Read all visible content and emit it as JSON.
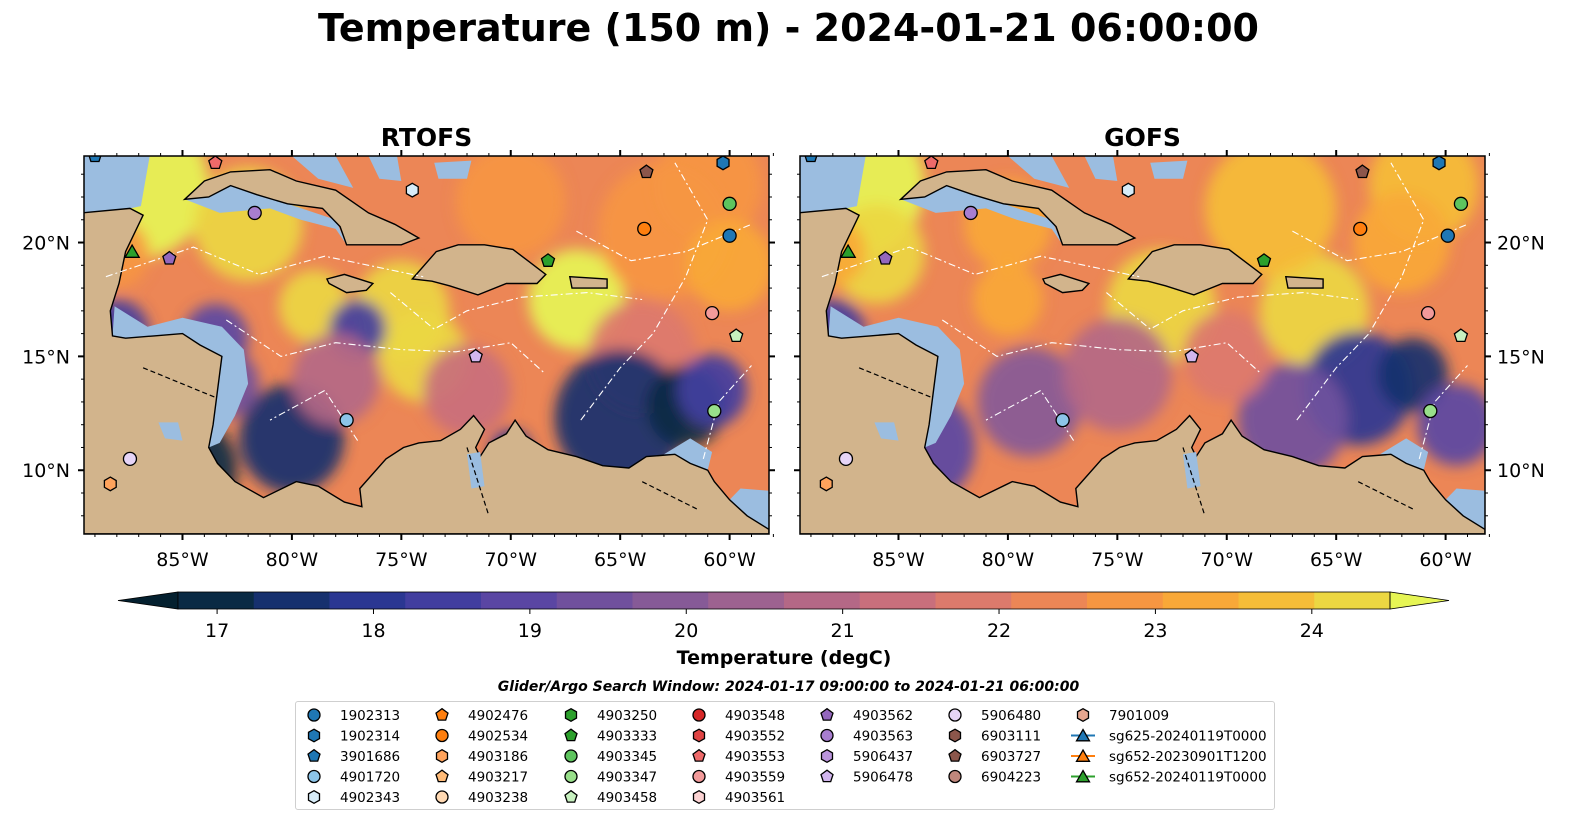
{
  "title": "Temperature (150 m) - 2024-01-21 06:00:00",
  "panels": [
    {
      "name": "RTOFS"
    },
    {
      "name": "GOFS"
    }
  ],
  "axes": {
    "lon_ticks": [
      "85°W",
      "80°W",
      "75°W",
      "70°W",
      "65°W",
      "60°W"
    ],
    "lat_ticks": [
      "20°N",
      "15°N",
      "10°N"
    ],
    "lon_values": [
      -85,
      -80,
      -75,
      -70,
      -65,
      -60
    ],
    "lat_values": [
      20,
      15,
      10
    ],
    "lon_range": [
      -89.5,
      -58.2
    ],
    "lat_range": [
      7.2,
      23.8
    ]
  },
  "colorbar": {
    "label": "Temperature (degC)",
    "ticks": [
      "17",
      "18",
      "19",
      "20",
      "21",
      "22",
      "23",
      "24"
    ],
    "range": [
      16.75,
      24.5
    ],
    "extend": "both",
    "colors": [
      "#04202f",
      "#0a2a44",
      "#16306e",
      "#2b3792",
      "#423e9f",
      "#5a46a3",
      "#70509d",
      "#865a97",
      "#9d6290",
      "#b46886",
      "#c96f7c",
      "#dc7a6c",
      "#ec8656",
      "#f69642",
      "#f8a838",
      "#f5bd38",
      "#ecd742",
      "#e6f554"
    ]
  },
  "chart_data": {
    "type": "heatmap",
    "variable": "Temperature (degC)",
    "depth": "150 m",
    "time": "2024-01-21 06:00:00",
    "panels": [
      "RTOFS",
      "GOFS"
    ],
    "xlabel": "",
    "ylabel": "",
    "legend_position": "bottom-center",
    "land_color": "#d2b48c",
    "shallow_water_color": "#9bbde0",
    "markers": [
      {
        "name": "1902313",
        "marker": "circle",
        "color": "#1f77b4",
        "rtofs": [
          -60.0,
          20.3
        ],
        "gofs": [
          -59.9,
          20.3
        ]
      },
      {
        "name": "1902314",
        "marker": "hexagon",
        "color": "#1f77b4",
        "rtofs": [
          -60.3,
          23.5
        ],
        "gofs": [
          -60.3,
          23.5
        ]
      },
      {
        "name": "3901686",
        "marker": "pentagon",
        "color": "#1f77b4",
        "rtofs": [
          -89.0,
          23.8
        ],
        "gofs": [
          -89.0,
          23.8
        ]
      },
      {
        "name": "4901720",
        "marker": "circle",
        "color": "#8cc4e8",
        "rtofs": [
          -77.5,
          12.2
        ],
        "gofs": [
          -77.5,
          12.2
        ]
      },
      {
        "name": "4902343",
        "marker": "hexagon",
        "color": "#d7ecf8",
        "rtofs": [
          -74.5,
          22.3
        ],
        "gofs": [
          -74.5,
          22.3
        ]
      },
      {
        "name": "4902476",
        "marker": "pentagon",
        "color": "#ff7f0e",
        "rtofs": [],
        "gofs": []
      },
      {
        "name": "4902534",
        "marker": "circle",
        "color": "#ff7f0e",
        "rtofs": [
          -63.9,
          20.6
        ],
        "gofs": [
          -63.9,
          20.6
        ]
      },
      {
        "name": "4903186",
        "marker": "hexagon",
        "color": "#ffa35c",
        "rtofs": [
          -88.3,
          9.4
        ],
        "gofs": [
          -88.3,
          9.4
        ]
      },
      {
        "name": "4903217",
        "marker": "pentagon",
        "color": "#ffbb78",
        "rtofs": [],
        "gofs": []
      },
      {
        "name": "4903238",
        "marker": "circle",
        "color": "#ffd9b3",
        "rtofs": [],
        "gofs": []
      },
      {
        "name": "4903250",
        "marker": "hexagon",
        "color": "#2ca02c",
        "rtofs": [],
        "gofs": []
      },
      {
        "name": "4903333",
        "marker": "pentagon",
        "color": "#2ca02c",
        "rtofs": [
          -68.3,
          19.2
        ],
        "gofs": [
          -68.3,
          19.2
        ]
      },
      {
        "name": "4903345",
        "marker": "circle",
        "color": "#5ec45e",
        "rtofs": [
          -60.0,
          21.7
        ],
        "gofs": [
          -59.3,
          21.7
        ]
      },
      {
        "name": "4903347",
        "marker": "circle",
        "color": "#98df8a",
        "rtofs": [
          -60.7,
          12.6
        ],
        "gofs": [
          -60.7,
          12.6
        ]
      },
      {
        "name": "4903458",
        "marker": "pentagon",
        "color": "#c7f0bf",
        "rtofs": [
          -59.7,
          15.9
        ],
        "gofs": [
          -59.3,
          15.9
        ]
      },
      {
        "name": "4903548",
        "marker": "circle",
        "color": "#d62728",
        "rtofs": [],
        "gofs": []
      },
      {
        "name": "4903552",
        "marker": "hexagon",
        "color": "#e04444",
        "rtofs": [],
        "gofs": []
      },
      {
        "name": "4903553",
        "marker": "pentagon",
        "color": "#ee6a6a",
        "rtofs": [
          -83.5,
          23.5
        ],
        "gofs": [
          -83.5,
          23.5
        ]
      },
      {
        "name": "4903559",
        "marker": "circle",
        "color": "#f29a9a",
        "rtofs": [
          -60.8,
          16.9
        ],
        "gofs": [
          -60.8,
          16.9
        ]
      },
      {
        "name": "4903561",
        "marker": "hexagon",
        "color": "#fbd2d2",
        "rtofs": [],
        "gofs": []
      },
      {
        "name": "4903562",
        "marker": "pentagon",
        "color": "#9467bd",
        "rtofs": [
          -85.6,
          19.3
        ],
        "gofs": [
          -85.6,
          19.3
        ]
      },
      {
        "name": "4903563",
        "marker": "circle",
        "color": "#a87ed0",
        "rtofs": [
          -81.7,
          21.3
        ],
        "gofs": [
          -81.7,
          21.3
        ]
      },
      {
        "name": "5906437",
        "marker": "hexagon",
        "color": "#bb95dd",
        "rtofs": [],
        "gofs": []
      },
      {
        "name": "5906478",
        "marker": "pentagon",
        "color": "#d2b6ee",
        "rtofs": [
          -71.6,
          15.0
        ],
        "gofs": [
          -71.6,
          15.0
        ]
      },
      {
        "name": "5906480",
        "marker": "circle",
        "color": "#e6d4f7",
        "rtofs": [
          -87.4,
          10.5
        ],
        "gofs": [
          -87.4,
          10.5
        ]
      },
      {
        "name": "6903111",
        "marker": "hexagon",
        "color": "#8c564b",
        "rtofs": [],
        "gofs": []
      },
      {
        "name": "6903727",
        "marker": "pentagon",
        "color": "#8c564b",
        "rtofs": [
          -63.8,
          23.1
        ],
        "gofs": [
          -63.8,
          23.1
        ]
      },
      {
        "name": "6904223",
        "marker": "circle",
        "color": "#c0877c",
        "rtofs": [],
        "gofs": []
      },
      {
        "name": "7901009",
        "marker": "hexagon",
        "color": "#e6a68f",
        "rtofs": [],
        "gofs": []
      },
      {
        "name": "sg625-20240119T0000",
        "marker": "triangle",
        "color": "#1f77b4",
        "rtofs": [],
        "gofs": []
      },
      {
        "name": "sg652-20230901T1200",
        "marker": "triangle",
        "color": "#ff7f0e",
        "rtofs": [],
        "gofs": []
      },
      {
        "name": "sg652-20240119T0000",
        "marker": "triangle",
        "color": "#2ca02c",
        "rtofs": [
          -87.3,
          19.6
        ],
        "gofs": [
          -87.3,
          19.6
        ]
      }
    ]
  },
  "legend": {
    "window_label": "Glider/Argo Search Window: 2024-01-17 09:00:00 to 2024-01-21 06:00:00",
    "columns": [
      [
        {
          "label": "1902313",
          "marker": "circle",
          "color": "#1f77b4"
        },
        {
          "label": "1902314",
          "marker": "hexagon",
          "color": "#1f77b4"
        },
        {
          "label": "3901686",
          "marker": "pentagon",
          "color": "#1f77b4"
        },
        {
          "label": "4901720",
          "marker": "circle",
          "color": "#8cc4e8"
        },
        {
          "label": "4902343",
          "marker": "hexagon",
          "color": "#d7ecf8"
        }
      ],
      [
        {
          "label": "4902476",
          "marker": "pentagon",
          "color": "#ff7f0e"
        },
        {
          "label": "4902534",
          "marker": "circle",
          "color": "#ff7f0e"
        },
        {
          "label": "4903186",
          "marker": "hexagon",
          "color": "#ffa35c"
        },
        {
          "label": "4903217",
          "marker": "pentagon",
          "color": "#ffbb78"
        },
        {
          "label": "4903238",
          "marker": "circle",
          "color": "#ffd9b3"
        }
      ],
      [
        {
          "label": "4903250",
          "marker": "hexagon",
          "color": "#2ca02c"
        },
        {
          "label": "4903333",
          "marker": "pentagon",
          "color": "#2ca02c"
        },
        {
          "label": "4903345",
          "marker": "circle",
          "color": "#5ec45e"
        },
        {
          "label": "4903347",
          "marker": "circle",
          "color": "#98df8a"
        },
        {
          "label": "4903458",
          "marker": "pentagon",
          "color": "#c7f0bf"
        }
      ],
      [
        {
          "label": "4903548",
          "marker": "circle",
          "color": "#d62728"
        },
        {
          "label": "4903552",
          "marker": "hexagon",
          "color": "#e04444"
        },
        {
          "label": "4903553",
          "marker": "pentagon",
          "color": "#ee6a6a"
        },
        {
          "label": "4903559",
          "marker": "circle",
          "color": "#f29a9a"
        },
        {
          "label": "4903561",
          "marker": "hexagon",
          "color": "#fbd2d2"
        }
      ],
      [
        {
          "label": "4903562",
          "marker": "pentagon",
          "color": "#9467bd"
        },
        {
          "label": "4903563",
          "marker": "circle",
          "color": "#a87ed0"
        },
        {
          "label": "5906437",
          "marker": "hexagon",
          "color": "#bb95dd"
        },
        {
          "label": "5906478",
          "marker": "pentagon",
          "color": "#d2b6ee"
        }
      ],
      [
        {
          "label": "5906480",
          "marker": "circle",
          "color": "#e6d4f7"
        },
        {
          "label": "6903111",
          "marker": "hexagon",
          "color": "#8c564b"
        },
        {
          "label": "6903727",
          "marker": "pentagon",
          "color": "#8c564b"
        },
        {
          "label": "6904223",
          "marker": "circle",
          "color": "#c0877c"
        }
      ],
      [
        {
          "label": "7901009",
          "marker": "hexagon",
          "color": "#e6a68f"
        },
        {
          "label": "sg625-20240119T0000",
          "marker": "triangle",
          "color": "#1f77b4",
          "line": true
        },
        {
          "label": "sg652-20230901T1200",
          "marker": "triangle",
          "color": "#ff7f0e",
          "line": true
        },
        {
          "label": "sg652-20240119T0000",
          "marker": "triangle",
          "color": "#2ca02c",
          "line": true
        }
      ]
    ]
  }
}
